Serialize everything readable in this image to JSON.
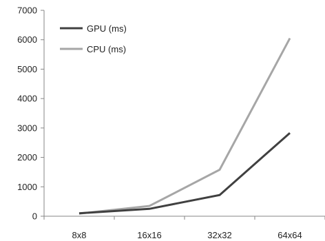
{
  "chart_data": {
    "type": "line",
    "title": "",
    "xlabel": "",
    "ylabel": "",
    "categories": [
      "8x8",
      "16x16",
      "32x32",
      "64x64"
    ],
    "ylim": [
      0,
      7000
    ],
    "yticks": [
      0,
      1000,
      2000,
      3000,
      4000,
      5000,
      6000,
      7000
    ],
    "grid": "y-axis only",
    "legend_position": "top-left",
    "series": [
      {
        "name": "GPU (ms)",
        "color": "#404040",
        "values": [
          100,
          250,
          720,
          2830
        ]
      },
      {
        "name": "CPU (ms)",
        "color": "#a6a6a6",
        "values": [
          90,
          350,
          1580,
          6050
        ]
      }
    ]
  }
}
